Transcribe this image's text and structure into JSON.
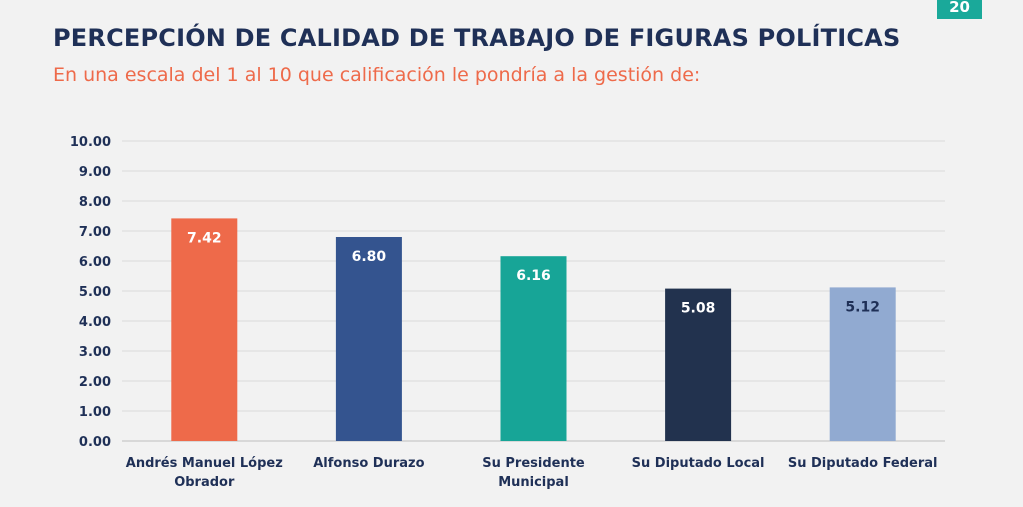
{
  "page": {
    "number": "20",
    "title": "PERCEPCIÓN DE CALIDAD DE TRABAJO DE FIGURAS POLÍTICAS",
    "subtitle": "En una escala del 1 al 10 que calificación le pondría a la gestión de:"
  },
  "chart_data": {
    "type": "bar",
    "categories": [
      "Andrés Manuel López Obrador",
      "Alfonso Durazo",
      "Su Presidente Municipal",
      "Su Diputado Local",
      "Su Diputado Federal"
    ],
    "category_label_lines": [
      [
        "Andrés Manuel López",
        "Obrador"
      ],
      [
        "Alfonso Durazo"
      ],
      [
        "Su Presidente",
        "Municipal"
      ],
      [
        "Su Diputado Local"
      ],
      [
        "Su Diputado Federal"
      ]
    ],
    "values": [
      7.42,
      6.8,
      6.16,
      5.08,
      5.12
    ],
    "value_labels": [
      "7.42",
      "6.80",
      "6.16",
      "5.08",
      "5.12"
    ],
    "colors": [
      "#ee6a4a",
      "#34548f",
      "#17a597",
      "#22324e",
      "#91aad1"
    ],
    "value_label_colors": [
      "#ffffff",
      "#ffffff",
      "#ffffff",
      "#ffffff",
      "#1f3057"
    ],
    "ylim": [
      0,
      10
    ],
    "yticks": [
      "0.00",
      "1.00",
      "2.00",
      "3.00",
      "4.00",
      "5.00",
      "6.00",
      "7.00",
      "8.00",
      "9.00",
      "10.00"
    ],
    "grid": true,
    "legend": "none"
  }
}
